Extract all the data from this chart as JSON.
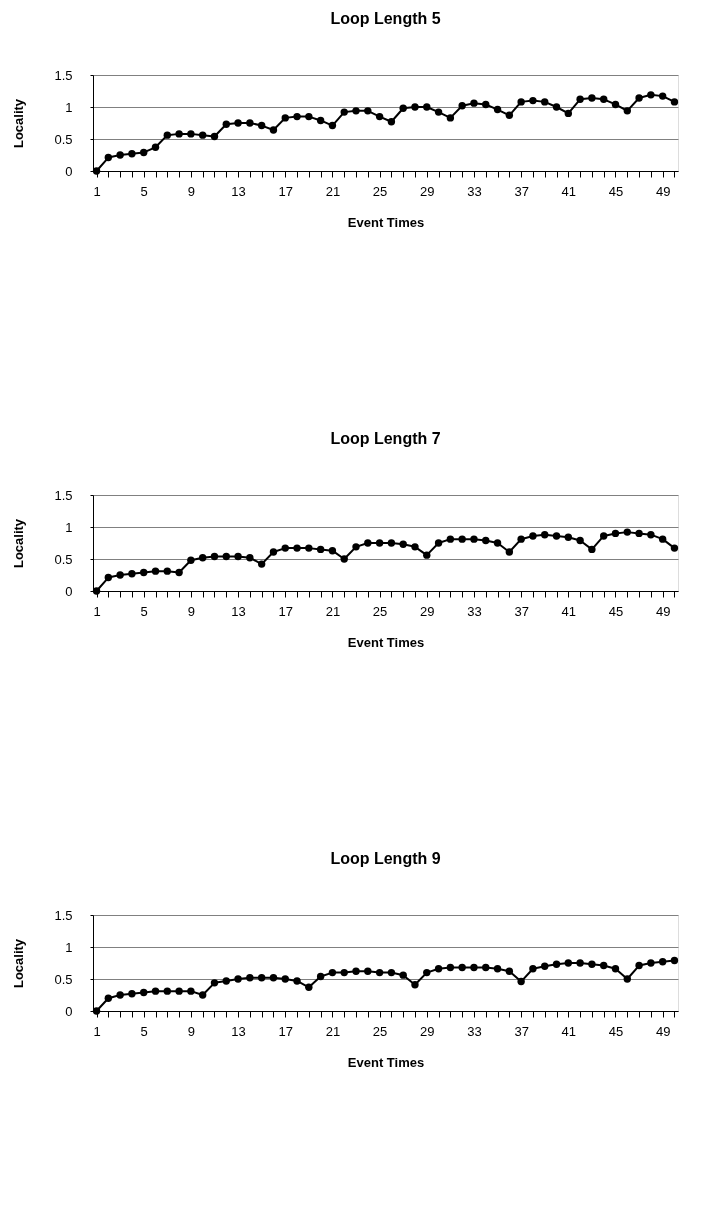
{
  "chart_data": [
    {
      "type": "line",
      "title": "Loop Length 5",
      "xlabel": "Event Times",
      "ylabel": "Locality",
      "categories": [
        "1",
        null,
        null,
        null,
        "5",
        null,
        null,
        null,
        "9",
        null,
        null,
        null,
        "13",
        null,
        null,
        null,
        "17",
        null,
        null,
        null,
        "21",
        null,
        null,
        null,
        "25",
        null,
        null,
        null,
        "29",
        null,
        null,
        null,
        "33",
        null,
        null,
        null,
        "37",
        null,
        null,
        null,
        "41",
        null,
        null,
        null,
        "45",
        null,
        null,
        null,
        "49",
        null
      ],
      "series": [
        {
          "color": "#000000",
          "values": [
            0,
            0.21,
            0.25,
            0.27,
            0.29,
            0.37,
            0.56,
            0.58,
            0.58,
            0.56,
            0.54,
            0.73,
            0.75,
            0.75,
            0.71,
            0.64,
            0.83,
            0.85,
            0.85,
            0.79,
            0.71,
            0.92,
            0.94,
            0.94,
            0.85,
            0.77,
            0.98,
            1.0,
            1.0,
            0.92,
            0.83,
            1.02,
            1.06,
            1.04,
            0.96,
            0.87,
            1.08,
            1.1,
            1.08,
            1.0,
            0.9,
            1.12,
            1.14,
            1.12,
            1.04,
            0.94,
            1.14,
            1.19,
            1.17,
            1.08
          ]
        }
      ],
      "ylim": [
        0,
        1.5
      ],
      "yticks": [
        0,
        0.5,
        1,
        1.5
      ],
      "grid": "y",
      "marker": "circle",
      "line_style": "solid"
    },
    {
      "type": "line",
      "title": "Loop Length 7",
      "xlabel": "Event Times",
      "ylabel": "Locality",
      "categories": [
        "1",
        null,
        null,
        null,
        "5",
        null,
        null,
        null,
        "9",
        null,
        null,
        null,
        "13",
        null,
        null,
        null,
        "17",
        null,
        null,
        null,
        "21",
        null,
        null,
        null,
        "25",
        null,
        null,
        null,
        "29",
        null,
        null,
        null,
        "33",
        null,
        null,
        null,
        "37",
        null,
        null,
        null,
        "41",
        null,
        null,
        null,
        "45",
        null,
        null,
        null,
        "49",
        null
      ],
      "series": [
        {
          "color": "#000000",
          "values": [
            0,
            0.21,
            0.25,
            0.27,
            0.29,
            0.31,
            0.31,
            0.29,
            0.48,
            0.52,
            0.54,
            0.54,
            0.54,
            0.52,
            0.42,
            0.61,
            0.67,
            0.67,
            0.67,
            0.65,
            0.63,
            0.5,
            0.69,
            0.75,
            0.75,
            0.75,
            0.73,
            0.69,
            0.56,
            0.75,
            0.81,
            0.81,
            0.81,
            0.79,
            0.75,
            0.61,
            0.81,
            0.86,
            0.88,
            0.86,
            0.84,
            0.79,
            0.65,
            0.86,
            0.9,
            0.92,
            0.9,
            0.88,
            0.81,
            0.67
          ]
        }
      ],
      "ylim": [
        0,
        1.5
      ],
      "yticks": [
        0,
        0.5,
        1,
        1.5
      ],
      "grid": "y",
      "marker": "circle",
      "line_style": "solid"
    },
    {
      "type": "line",
      "title": "Loop Length 9",
      "xlabel": "Event Times",
      "ylabel": "Locality",
      "categories": [
        "1",
        null,
        null,
        null,
        "5",
        null,
        null,
        null,
        "9",
        null,
        null,
        null,
        "13",
        null,
        null,
        null,
        "17",
        null,
        null,
        null,
        "21",
        null,
        null,
        null,
        "25",
        null,
        null,
        null,
        "29",
        null,
        null,
        null,
        "33",
        null,
        null,
        null,
        "37",
        null,
        null,
        null,
        "41",
        null,
        null,
        null,
        "45",
        null,
        null,
        null,
        "49",
        null
      ],
      "series": [
        {
          "color": "#000000",
          "values": [
            0,
            0.2,
            0.25,
            0.27,
            0.29,
            0.31,
            0.31,
            0.31,
            0.31,
            0.25,
            0.44,
            0.47,
            0.5,
            0.52,
            0.52,
            0.52,
            0.5,
            0.47,
            0.37,
            0.54,
            0.6,
            0.6,
            0.62,
            0.62,
            0.6,
            0.6,
            0.56,
            0.41,
            0.6,
            0.66,
            0.68,
            0.68,
            0.68,
            0.68,
            0.66,
            0.62,
            0.46,
            0.66,
            0.7,
            0.73,
            0.75,
            0.75,
            0.73,
            0.71,
            0.66,
            0.5,
            0.71,
            0.75,
            0.77,
            0.79
          ]
        }
      ],
      "ylim": [
        0,
        1.5
      ],
      "yticks": [
        0,
        0.5,
        1,
        1.5
      ],
      "grid": "y",
      "marker": "circle",
      "line_style": "solid"
    }
  ]
}
